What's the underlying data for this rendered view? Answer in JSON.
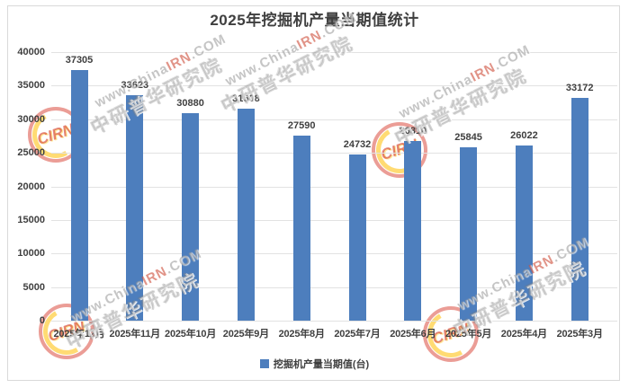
{
  "chart_data": {
    "type": "bar",
    "title": "2025年挖掘机产量当期值统计",
    "categories": [
      "2025年12月",
      "2025年11月",
      "2025年10月",
      "2025年9月",
      "2025年8月",
      "2025年7月",
      "2025年6月",
      "2025年5月",
      "2025年4月",
      "2025年3月"
    ],
    "values": [
      37305,
      33623,
      30880,
      31608,
      27590,
      24732,
      26810,
      25845,
      26022,
      33172
    ],
    "series_name": "挖掘机产量当期值(台)",
    "ylim": [
      0,
      40000
    ],
    "yticks": [
      0,
      5000,
      10000,
      15000,
      20000,
      25000,
      30000,
      35000,
      40000
    ],
    "grid": true,
    "data_labels": true,
    "legend_position": "bottom",
    "colors": {
      "bar": "#4d7ebd",
      "grid": "#e2e2e2",
      "text": "#3f3f3f",
      "frame_border": "#d9d9d9"
    }
  },
  "legend": {
    "label": "挖掘机产量当期值(台)"
  },
  "watermark": {
    "url_prefix": "www.China",
    "url_highlight": "IRN",
    "url_suffix": ".COM",
    "company": "中研普华研究院",
    "logo_text": "CIRN"
  }
}
